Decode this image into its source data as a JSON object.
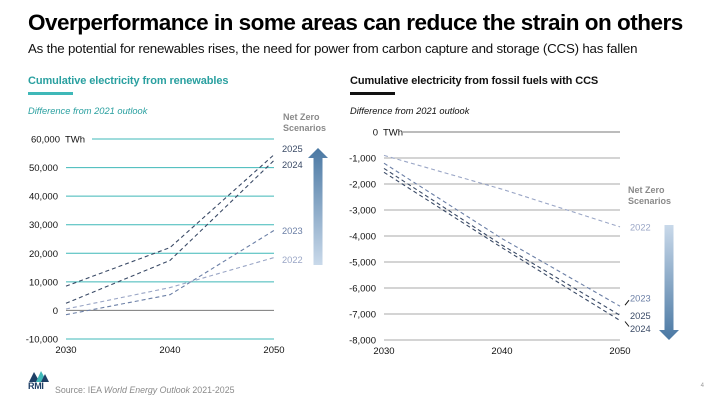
{
  "header": {
    "title": "Overperformance in some areas can reduce the strain on others",
    "subtitle": "As the potential for renewables rises, the need for power from carbon capture and storage (CCS) has fallen"
  },
  "colors": {
    "teal_accent": "#3fb8b8",
    "teal_title": "#2aa0a0",
    "dark_navy": "#2b3b55",
    "gridline_grey": "#9a9a9a",
    "arrow_top": "#c8d8e8",
    "arrow_bottom": "#4a78a3"
  },
  "legend": {
    "heading_line1": "Net Zero",
    "heading_line2": "Scenarios"
  },
  "chart_data": [
    {
      "type": "line",
      "title": "Cumulative electricity from renewables",
      "subtitle": "Difference from 2021 outlook",
      "unit_label": "TWh",
      "xlabel": "",
      "ylabel": "",
      "x": [
        2030,
        2040,
        2050
      ],
      "x_tick_labels": [
        "2030",
        "2040",
        "2050"
      ],
      "ylim": [
        -10000,
        60000
      ],
      "y_ticks": [
        -10000,
        0,
        10000,
        20000,
        30000,
        40000,
        50000,
        60000
      ],
      "y_tick_labels": [
        "-10,000",
        "0",
        "10,000",
        "20,000",
        "30,000",
        "40,000",
        "50,000",
        "60,000"
      ],
      "grid": true,
      "legend_position": "right",
      "arrow_direction": "up",
      "series": [
        {
          "name": "2025",
          "values": [
            8500,
            22000,
            54500
          ],
          "color": "#3a4a66"
        },
        {
          "name": "2024",
          "values": [
            2500,
            17500,
            52500
          ],
          "color": "#3a4a66"
        },
        {
          "name": "2023",
          "values": [
            -1500,
            5500,
            28000
          ],
          "color": "#6b7fa6"
        },
        {
          "name": "2022",
          "values": [
            500,
            8000,
            18500
          ],
          "color": "#9aa6c6"
        }
      ]
    },
    {
      "type": "line",
      "title": "Cumulative electricity from fossil fuels with CCS",
      "subtitle": "Difference from 2021 outlook",
      "unit_label": "TWh",
      "xlabel": "",
      "ylabel": "",
      "x": [
        2030,
        2040,
        2050
      ],
      "x_tick_labels": [
        "2030",
        "2040",
        "2050"
      ],
      "ylim": [
        -8000,
        0
      ],
      "y_ticks": [
        -8000,
        -7000,
        -6000,
        -5000,
        -4000,
        -3000,
        -2000,
        -1000,
        0
      ],
      "y_tick_labels": [
        "-8,000",
        "-7,000",
        "-6,000",
        "-5,000",
        "-4,000",
        "-3,000",
        "-2,000",
        "-1,000",
        "0"
      ],
      "grid": true,
      "legend_position": "right",
      "arrow_direction": "down",
      "series": [
        {
          "name": "2022",
          "values": [
            -900,
            -2200,
            -3650
          ],
          "color": "#9aa6c6"
        },
        {
          "name": "2023",
          "values": [
            -1200,
            -4100,
            -6700
          ],
          "color": "#6b7fa6"
        },
        {
          "name": "2025",
          "values": [
            -1400,
            -4350,
            -7050
          ],
          "color": "#3a4a66"
        },
        {
          "name": "2024",
          "values": [
            -1550,
            -4450,
            -7250
          ],
          "color": "#3a4a66"
        }
      ]
    }
  ],
  "footer": {
    "source_prefix": "Source: IEA ",
    "source_italic": "World Energy Outlook",
    "source_suffix": " 2021-2025",
    "page_number": "4",
    "logo_text": "RMI"
  }
}
